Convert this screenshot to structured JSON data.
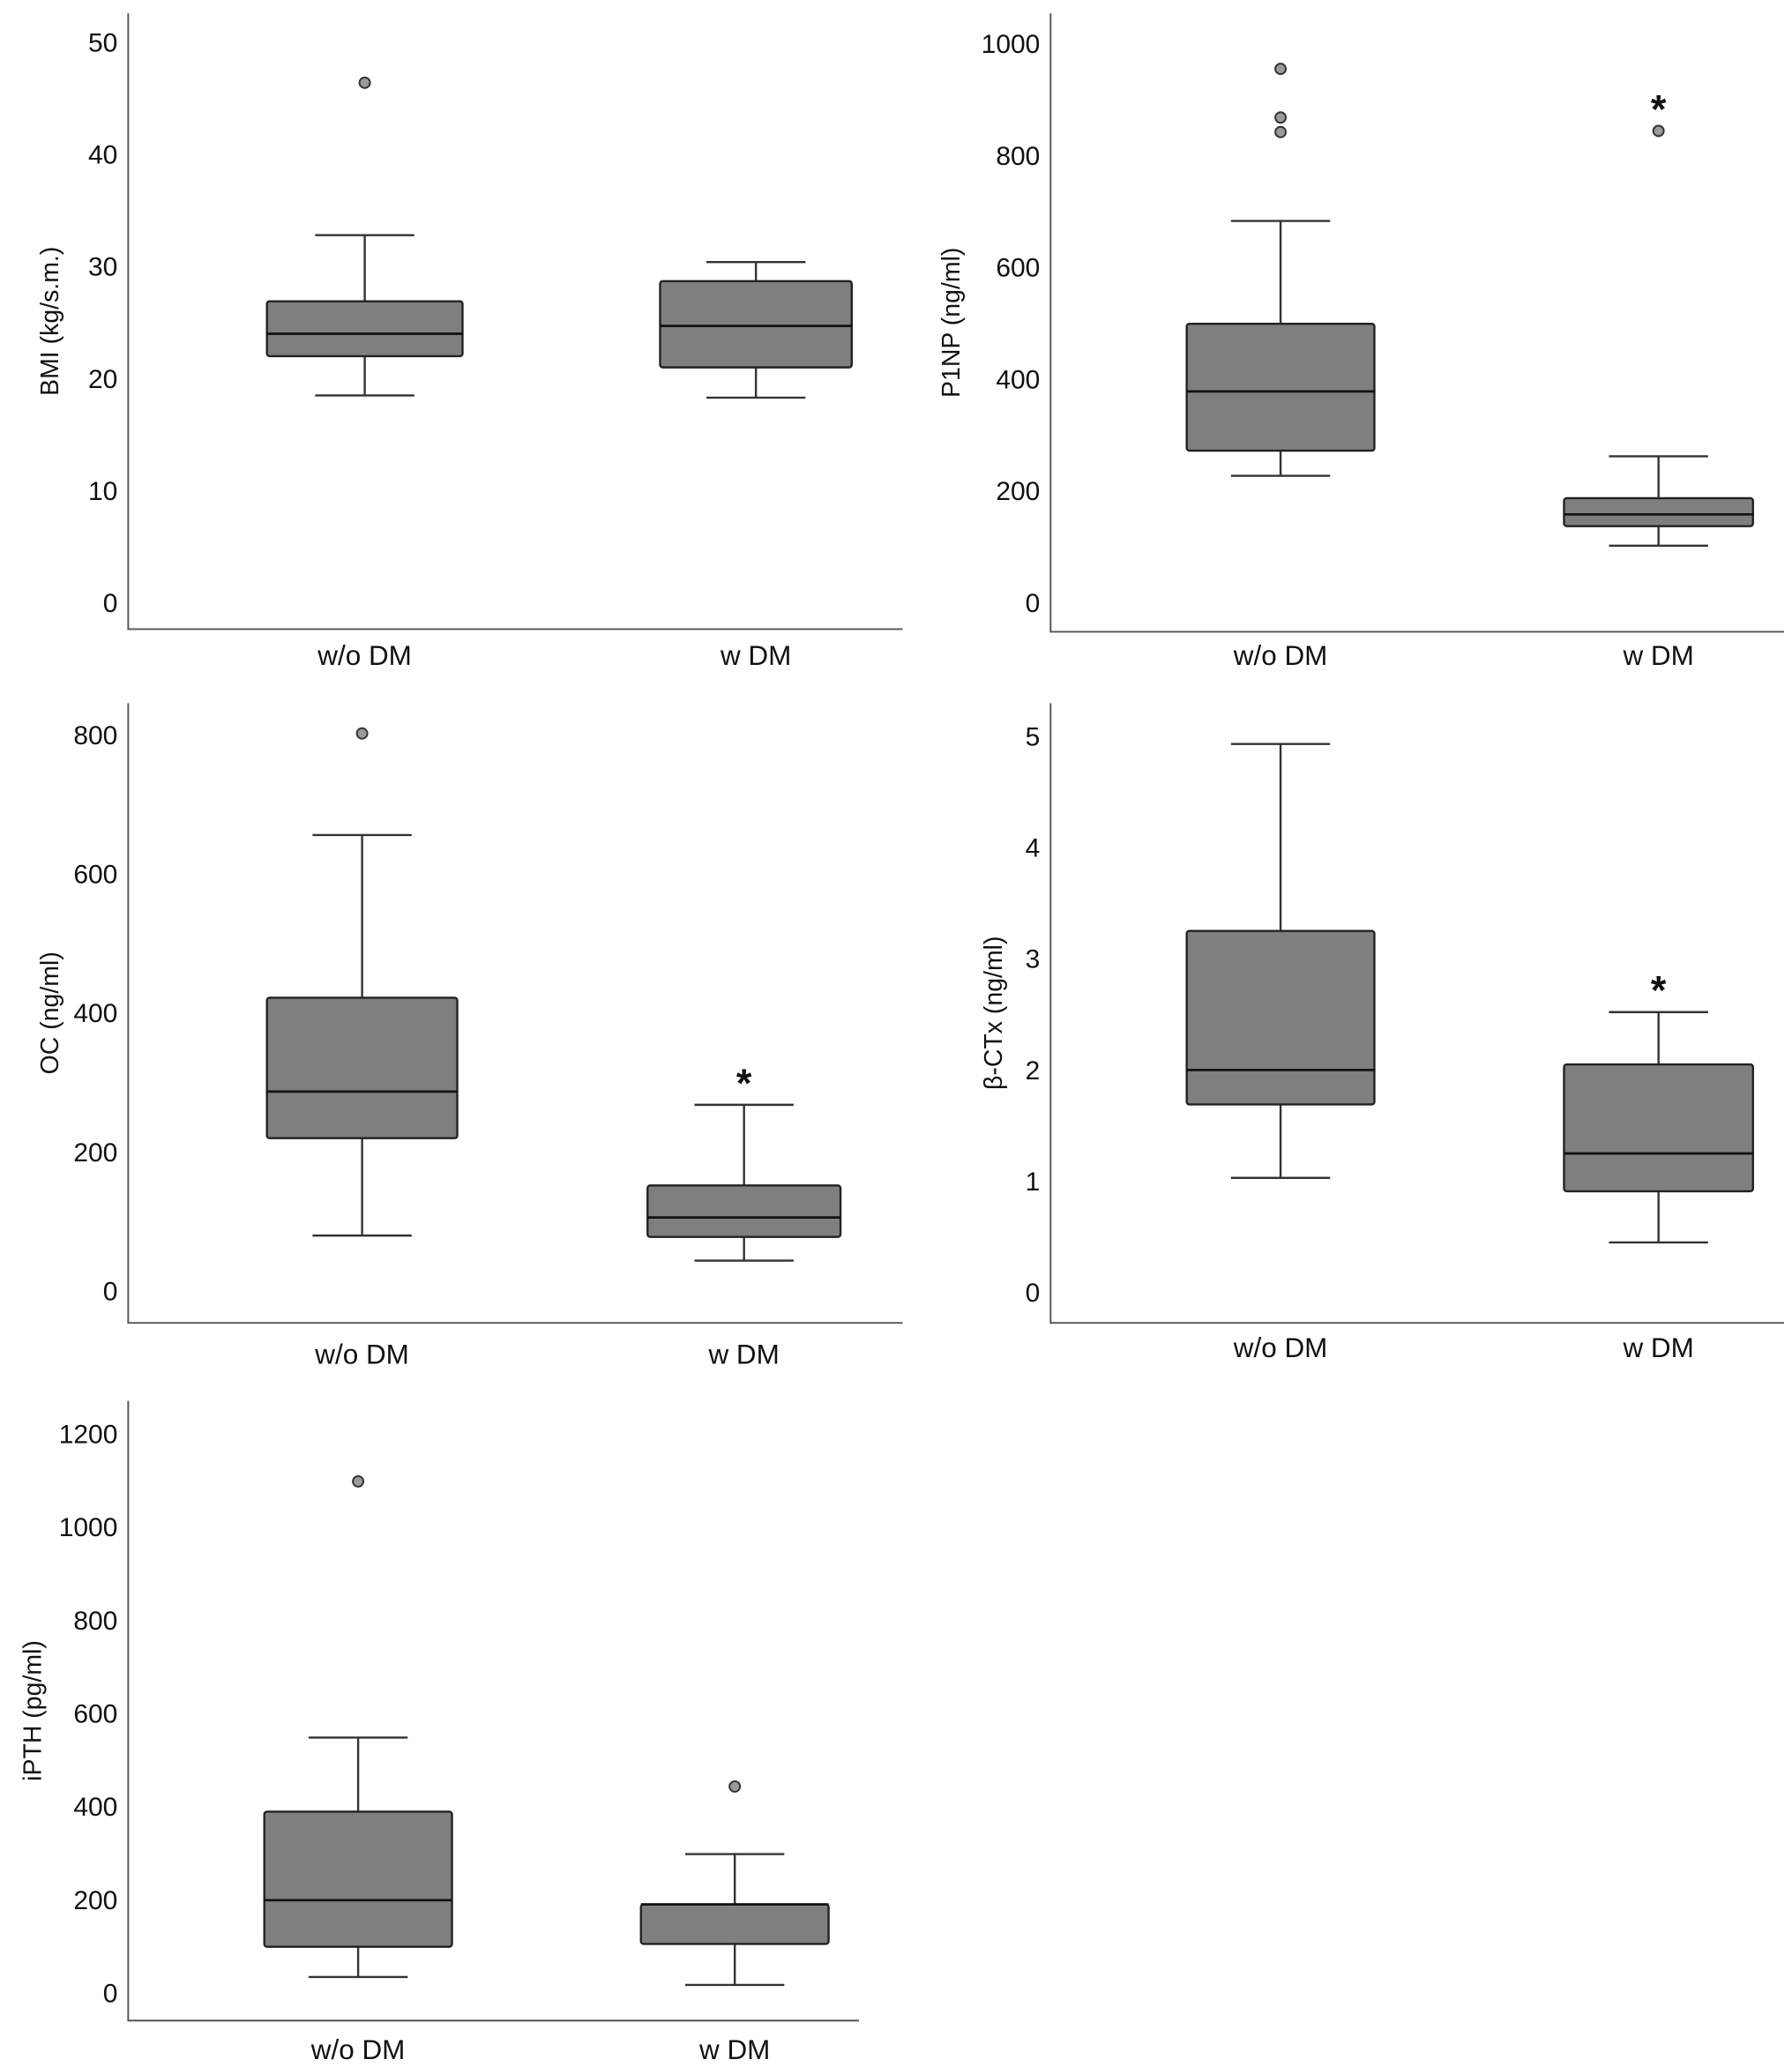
{
  "chart_data": [
    {
      "type": "box",
      "ylabel": "BMI (kg/s.m.)",
      "yticks": [
        0,
        10,
        20,
        30,
        40,
        50
      ],
      "categories": [
        "w/o DM",
        "w DM"
      ],
      "boxes": [
        {
          "low": 18.5,
          "q1": 22.0,
          "median": 24.0,
          "q3": 26.9,
          "high": 32.8,
          "outliers": [
            46.4
          ],
          "star": false
        },
        {
          "low": 18.3,
          "q1": 21.0,
          "median": 24.7,
          "q3": 28.7,
          "high": 30.4,
          "outliers": [],
          "star": false
        }
      ]
    },
    {
      "type": "box",
      "ylabel": "P1NP (ng/ml)",
      "yticks": [
        0,
        200,
        400,
        600,
        800,
        1000
      ],
      "categories": [
        "w/o DM",
        "w DM"
      ],
      "boxes": [
        {
          "low": 227,
          "q1": 272,
          "median": 378,
          "q3": 499,
          "high": 683,
          "outliers": [
            842,
            868,
            955
          ],
          "star": false
        },
        {
          "low": 102,
          "q1": 137,
          "median": 158,
          "q3": 187,
          "high": 262,
          "outliers": [
            844
          ],
          "star": true
        }
      ],
      "annotation": "*"
    },
    {
      "type": "box",
      "ylabel": "OC (ng/ml)",
      "yticks": [
        0,
        200,
        400,
        600,
        800
      ],
      "categories": [
        "w/o DM",
        "w DM"
      ],
      "boxes": [
        {
          "low": 80,
          "q1": 220,
          "median": 287,
          "q3": 422,
          "high": 656,
          "outliers": [
            802
          ],
          "star": false
        },
        {
          "low": 44,
          "q1": 78,
          "median": 106,
          "q3": 152,
          "high": 268,
          "outliers": [],
          "star": true
        }
      ],
      "annotation": "*"
    },
    {
      "type": "box",
      "ylabel": "β-CTx (ng/ml)",
      "yticks": [
        0,
        1,
        2,
        3,
        4,
        5
      ],
      "categories": [
        "w/o DM",
        "w DM"
      ],
      "boxes": [
        {
          "low": 1.03,
          "q1": 1.69,
          "median": 2.0,
          "q3": 3.25,
          "high": 4.93,
          "outliers": [],
          "star": false
        },
        {
          "low": 0.45,
          "q1": 0.91,
          "median": 1.25,
          "q3": 2.05,
          "high": 2.52,
          "outliers": [],
          "star": true
        }
      ],
      "annotation": "*"
    },
    {
      "type": "box",
      "ylabel": "iPTH (pg/ml)",
      "yticks": [
        0,
        200,
        400,
        600,
        800,
        1000,
        1200
      ],
      "categories": [
        "w/o DM",
        "w DM"
      ],
      "boxes": [
        {
          "low": 34,
          "q1": 99,
          "median": 199,
          "q3": 389,
          "high": 548,
          "outliers": [
            1098
          ],
          "star": false
        },
        {
          "low": 17,
          "q1": 105,
          "median": 190,
          "q3": 190,
          "high": 298,
          "outliers": [
            443
          ],
          "star": false
        }
      ]
    }
  ]
}
